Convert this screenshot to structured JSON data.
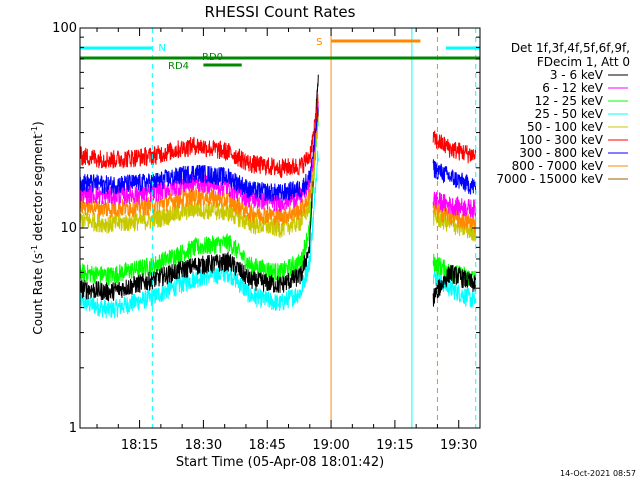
{
  "chart_data": {
    "type": "line",
    "title": "RHESSI Count Rates",
    "xlabel": "Start Time (05-Apr-08 18:01:42)",
    "ylabel_main": "Count Rate (s",
    "ylabel_sup1": "-1",
    "ylabel_mid": " detector segment",
    "ylabel_sup2": "-1",
    "ylabel_end": ")",
    "yscale": "log",
    "ylim": [
      1,
      100
    ],
    "xlim_min": [
      3.0,
      97.0
    ],
    "x_ticks": [
      {
        "value": 17,
        "label": "18:15"
      },
      {
        "value": 32,
        "label": "18:30"
      },
      {
        "value": 47,
        "label": "18:45"
      },
      {
        "value": 62,
        "label": "19:00"
      },
      {
        "value": 77,
        "label": "19:15"
      },
      {
        "value": 92,
        "label": "19:30"
      }
    ],
    "y_ticks": [
      {
        "value": 1,
        "label": "1"
      },
      {
        "value": 10,
        "label": "10"
      },
      {
        "value": 100,
        "label": "100"
      }
    ],
    "legend_header": [
      "Det 1f,3f,4f,5f,6f,9f,",
      "FDecim 1, Att 0"
    ],
    "legend_position": "right",
    "series": [
      {
        "name": "3 - 6 keV",
        "color": "#000000",
        "points": [
          [
            3,
            5
          ],
          [
            10,
            4.8
          ],
          [
            20,
            5.5
          ],
          [
            30,
            6.5
          ],
          [
            38,
            6.8
          ],
          [
            43,
            5.5
          ],
          [
            50,
            5.2
          ],
          [
            55,
            5.8
          ],
          [
            57,
            8
          ],
          [
            58,
            20
          ],
          [
            59,
            55
          ]
        ],
        "points2": [
          [
            86,
            4.5
          ],
          [
            90,
            6
          ],
          [
            96,
            5.2
          ]
        ]
      },
      {
        "name": "6 - 12 keV",
        "color": "#ff00ff",
        "points": [
          [
            3,
            15
          ],
          [
            10,
            14.5
          ],
          [
            20,
            15
          ],
          [
            30,
            17
          ],
          [
            38,
            16
          ],
          [
            43,
            14
          ],
          [
            50,
            13.5
          ],
          [
            55,
            14.5
          ],
          [
            57,
            17
          ],
          [
            58,
            24
          ],
          [
            59,
            42
          ]
        ],
        "points2": [
          [
            86,
            14
          ],
          [
            90,
            13
          ],
          [
            96,
            12.5
          ]
        ]
      },
      {
        "name": "12 - 25 keV",
        "color": "#00ff00",
        "points": [
          [
            3,
            6
          ],
          [
            10,
            5.8
          ],
          [
            20,
            6.5
          ],
          [
            30,
            8
          ],
          [
            38,
            8.5
          ],
          [
            43,
            6.5
          ],
          [
            50,
            6
          ],
          [
            55,
            6.8
          ],
          [
            57,
            10
          ],
          [
            58,
            18
          ],
          [
            59,
            35
          ]
        ],
        "points2": [
          [
            86,
            6.8
          ],
          [
            90,
            6
          ],
          [
            96,
            5.6
          ]
        ]
      },
      {
        "name": "25 - 50 keV",
        "color": "#00ffff",
        "points": [
          [
            3,
            4.3
          ],
          [
            10,
            3.9
          ],
          [
            20,
            4.5
          ],
          [
            30,
            5.6
          ],
          [
            38,
            6
          ],
          [
            43,
            4.6
          ],
          [
            50,
            4.2
          ],
          [
            55,
            4.8
          ],
          [
            57,
            6.8
          ],
          [
            58,
            12
          ],
          [
            59,
            25
          ]
        ],
        "points2": [
          [
            86,
            5.8
          ],
          [
            90,
            5
          ],
          [
            96,
            4.3
          ]
        ]
      },
      {
        "name": "50 - 100 keV",
        "color": "#c8c800",
        "points": [
          [
            3,
            11
          ],
          [
            10,
            10.5
          ],
          [
            20,
            11
          ],
          [
            30,
            12.5
          ],
          [
            38,
            12
          ],
          [
            43,
            10.5
          ],
          [
            50,
            10
          ],
          [
            55,
            10.8
          ],
          [
            57,
            13
          ],
          [
            58,
            20
          ],
          [
            59,
            38
          ]
        ],
        "points2": [
          [
            86,
            11.5
          ],
          [
            90,
            10.5
          ],
          [
            96,
            9.5
          ]
        ]
      },
      {
        "name": "100 - 300 keV",
        "color": "#ff0000",
        "points": [
          [
            3,
            23
          ],
          [
            10,
            22
          ],
          [
            20,
            23
          ],
          [
            30,
            26
          ],
          [
            38,
            24
          ],
          [
            43,
            21
          ],
          [
            50,
            20
          ],
          [
            55,
            20.5
          ],
          [
            57,
            23
          ],
          [
            58,
            30
          ],
          [
            59,
            45
          ]
        ],
        "points2": [
          [
            86,
            28
          ],
          [
            90,
            25
          ],
          [
            96,
            23
          ]
        ]
      },
      {
        "name": "300 - 800 keV",
        "color": "#0000ff",
        "points": [
          [
            3,
            17
          ],
          [
            10,
            16.5
          ],
          [
            20,
            17
          ],
          [
            30,
            19
          ],
          [
            38,
            18
          ],
          [
            43,
            15.5
          ],
          [
            50,
            15
          ],
          [
            55,
            15.8
          ],
          [
            57,
            18
          ],
          [
            58,
            25
          ],
          [
            59,
            40
          ]
        ],
        "points2": [
          [
            86,
            20
          ],
          [
            90,
            18
          ],
          [
            96,
            16
          ]
        ]
      },
      {
        "name": "800 - 7000 keV",
        "color": "#ff8800",
        "points": [
          [
            3,
            13
          ],
          [
            10,
            12.5
          ],
          [
            20,
            13
          ],
          [
            30,
            14.5
          ],
          [
            38,
            13.8
          ],
          [
            43,
            12
          ],
          [
            50,
            11.5
          ],
          [
            55,
            12.3
          ],
          [
            57,
            14.5
          ],
          [
            58,
            22
          ],
          [
            59,
            38
          ]
        ],
        "points2": [
          [
            86,
            12.5
          ],
          [
            90,
            11.5
          ],
          [
            96,
            10.5
          ]
        ]
      },
      {
        "name": "7000 - 15000 keV",
        "color": "#996600",
        "points": [],
        "points2": []
      }
    ],
    "annotations": {
      "night_label": "N",
      "saa_label": "S",
      "rd0_label": "RD0",
      "rd4_label": "RD4",
      "night_color": "#00ffff",
      "saa_color": "#ff8800",
      "rd_color": "#008800",
      "night_bars": [
        [
          3,
          20
        ],
        [
          89,
          97
        ]
      ],
      "saa_bar": [
        62,
        83
      ],
      "rd0_bar": [
        3,
        97
      ],
      "rd4_bar": [
        32,
        41
      ],
      "cyan_vlines_solid": [
        3,
        81
      ],
      "cyan_vlines_dashed": [
        20,
        96
      ],
      "orange_vline_solid": 62,
      "orange_vline_dashed": 87
    }
  },
  "footer": {
    "timestamp": "14-Oct-2021 08:57"
  }
}
